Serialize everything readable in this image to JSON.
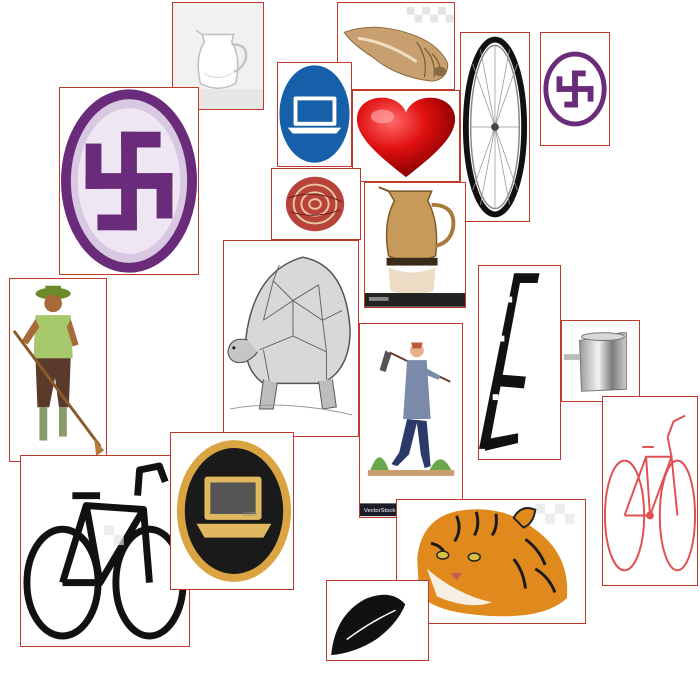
{
  "collage": {
    "border_color": "#c0392b",
    "items": [
      {
        "name": "glass-pitcher-image",
        "icon": "glass-pitcher-icon"
      },
      {
        "name": "seashell-image",
        "icon": "conch-shell-icon"
      },
      {
        "name": "wheel-image",
        "icon": "bicycle-wheel-icon"
      },
      {
        "name": "swastika-small-image",
        "icon": "swastika-icon",
        "color": "#6a2c7a"
      },
      {
        "name": "swastika-large-image",
        "icon": "swastika-icon",
        "color": "#6a2c7a"
      },
      {
        "name": "laptop-blue-image",
        "icon": "laptop-icon",
        "color": "#1560a8"
      },
      {
        "name": "heart-image",
        "icon": "heart-icon",
        "color": "#e01010"
      },
      {
        "name": "yarn-ball-image",
        "icon": "wool-ball-icon"
      },
      {
        "name": "amber-pitcher-image",
        "icon": "pitcher-icon",
        "color": "#c89a5a"
      },
      {
        "name": "farmer-image",
        "icon": "farmer-with-hoe-icon"
      },
      {
        "name": "tortoise-image",
        "icon": "tortoise-icon"
      },
      {
        "name": "walking-man-image",
        "icon": "man-with-hoe-icon",
        "watermark": "VectorStock"
      },
      {
        "name": "letter-e-image",
        "icon": "letter-e-icon"
      },
      {
        "name": "metal-mug-image",
        "icon": "steel-mug-icon"
      },
      {
        "name": "red-bicycle-image",
        "icon": "bicycle-icon",
        "color": "#e05050"
      },
      {
        "name": "black-bicycle-image",
        "icon": "bicycle-icon",
        "color": "#111111"
      },
      {
        "name": "laptop-gold-image",
        "icon": "laptop-icon",
        "color": "#d9a441"
      },
      {
        "name": "tiger-image",
        "icon": "tiger-icon",
        "color": "#e08a1e"
      },
      {
        "name": "hat-image",
        "icon": "hat-icon",
        "color": "#111111"
      }
    ]
  }
}
